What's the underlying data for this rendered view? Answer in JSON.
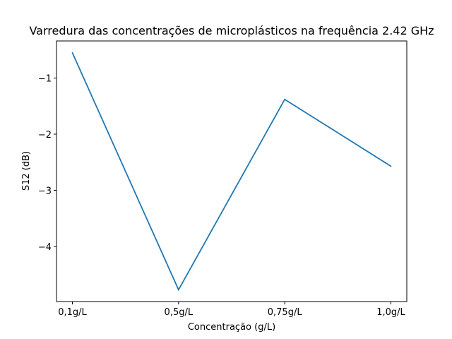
{
  "chart_data": {
    "type": "line",
    "title": "Varredura das concentrações de microplásticos na frequência 2.42 GHz",
    "xlabel": "Concentração (g/L)",
    "ylabel": "S12 (dB)",
    "categories": [
      "0,1g/L",
      "0,5g/L",
      "0,75g/L",
      "1,0g/L"
    ],
    "series": [
      {
        "values": [
          -0.55,
          -4.77,
          -1.38,
          -2.57
        ],
        "color": "#1f77b4"
      }
    ],
    "ylim": [
      -4.98,
      -0.34
    ],
    "yticks": [
      -1,
      -2,
      -3,
      -4
    ],
    "ytick_labels": [
      "−1",
      "−2",
      "−3",
      "−4"
    ],
    "grid": false,
    "legend": "none"
  }
}
